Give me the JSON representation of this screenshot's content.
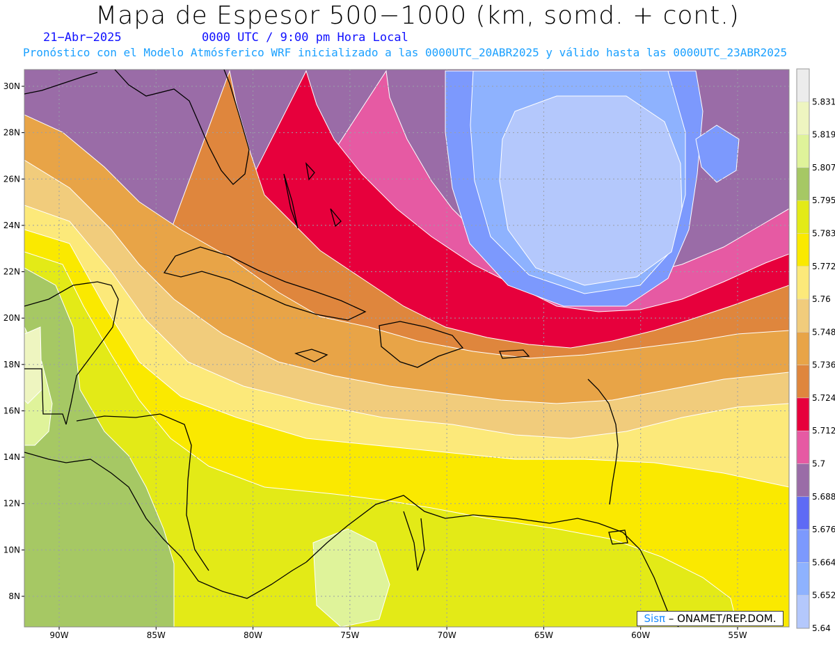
{
  "header": {
    "title": "Mapa de Espesor 500−1000 (km, somd. + cont.)",
    "date": "21−Abr−2025",
    "time": "0000 UTC / 9:00 pm Hora Local",
    "forecast": "Pronóstico con el Modelo Atmósferico WRF inicializado a las 0000UTC_20ABR2025 y válido hasta las  0000UTC_23ABR2025"
  },
  "map": {
    "lon_labels": [
      "90W",
      "85W",
      "80W",
      "75W",
      "70W",
      "65W",
      "60W",
      "55W"
    ],
    "lat_labels": [
      "30N",
      "28N",
      "26N",
      "24N",
      "22N",
      "20N",
      "18N",
      "16N",
      "14N",
      "12N",
      "10N",
      "8N"
    ],
    "grid": "dotted",
    "colors": {
      "land_outline": "#000000",
      "contour_line": "#ffffff"
    }
  },
  "legend": {
    "items": [
      {
        "label": "5.831",
        "color": "#ececec"
      },
      {
        "label": "5.819",
        "color": "#eef5c0"
      },
      {
        "label": "5.807",
        "color": "#dff39a"
      },
      {
        "label": "5.795",
        "color": "#a6c864"
      },
      {
        "label": "5.783",
        "color": "#e3ea17"
      },
      {
        "label": "5.772",
        "color": "#fae900"
      },
      {
        "label": "5.76",
        "color": "#fce97a"
      },
      {
        "label": "5.748",
        "color": "#f1cc7c"
      },
      {
        "label": "5.736",
        "color": "#e8a447"
      },
      {
        "label": "5.724",
        "color": "#df863d"
      },
      {
        "label": "5.712",
        "color": "#e7003c"
      },
      {
        "label": "5.7",
        "color": "#e65aa3"
      },
      {
        "label": "5.688",
        "color": "#9a6ca7"
      },
      {
        "label": "5.676",
        "color": "#5e6af5"
      },
      {
        "label": "5.664",
        "color": "#7c99fd"
      },
      {
        "label": "5.652",
        "color": "#8eb2fe"
      },
      {
        "label": "5.64",
        "color": "#b4c8fc"
      }
    ]
  },
  "credit": {
    "brand": "Sisπ",
    "rest": " – ONAMET/REP.DOM."
  }
}
